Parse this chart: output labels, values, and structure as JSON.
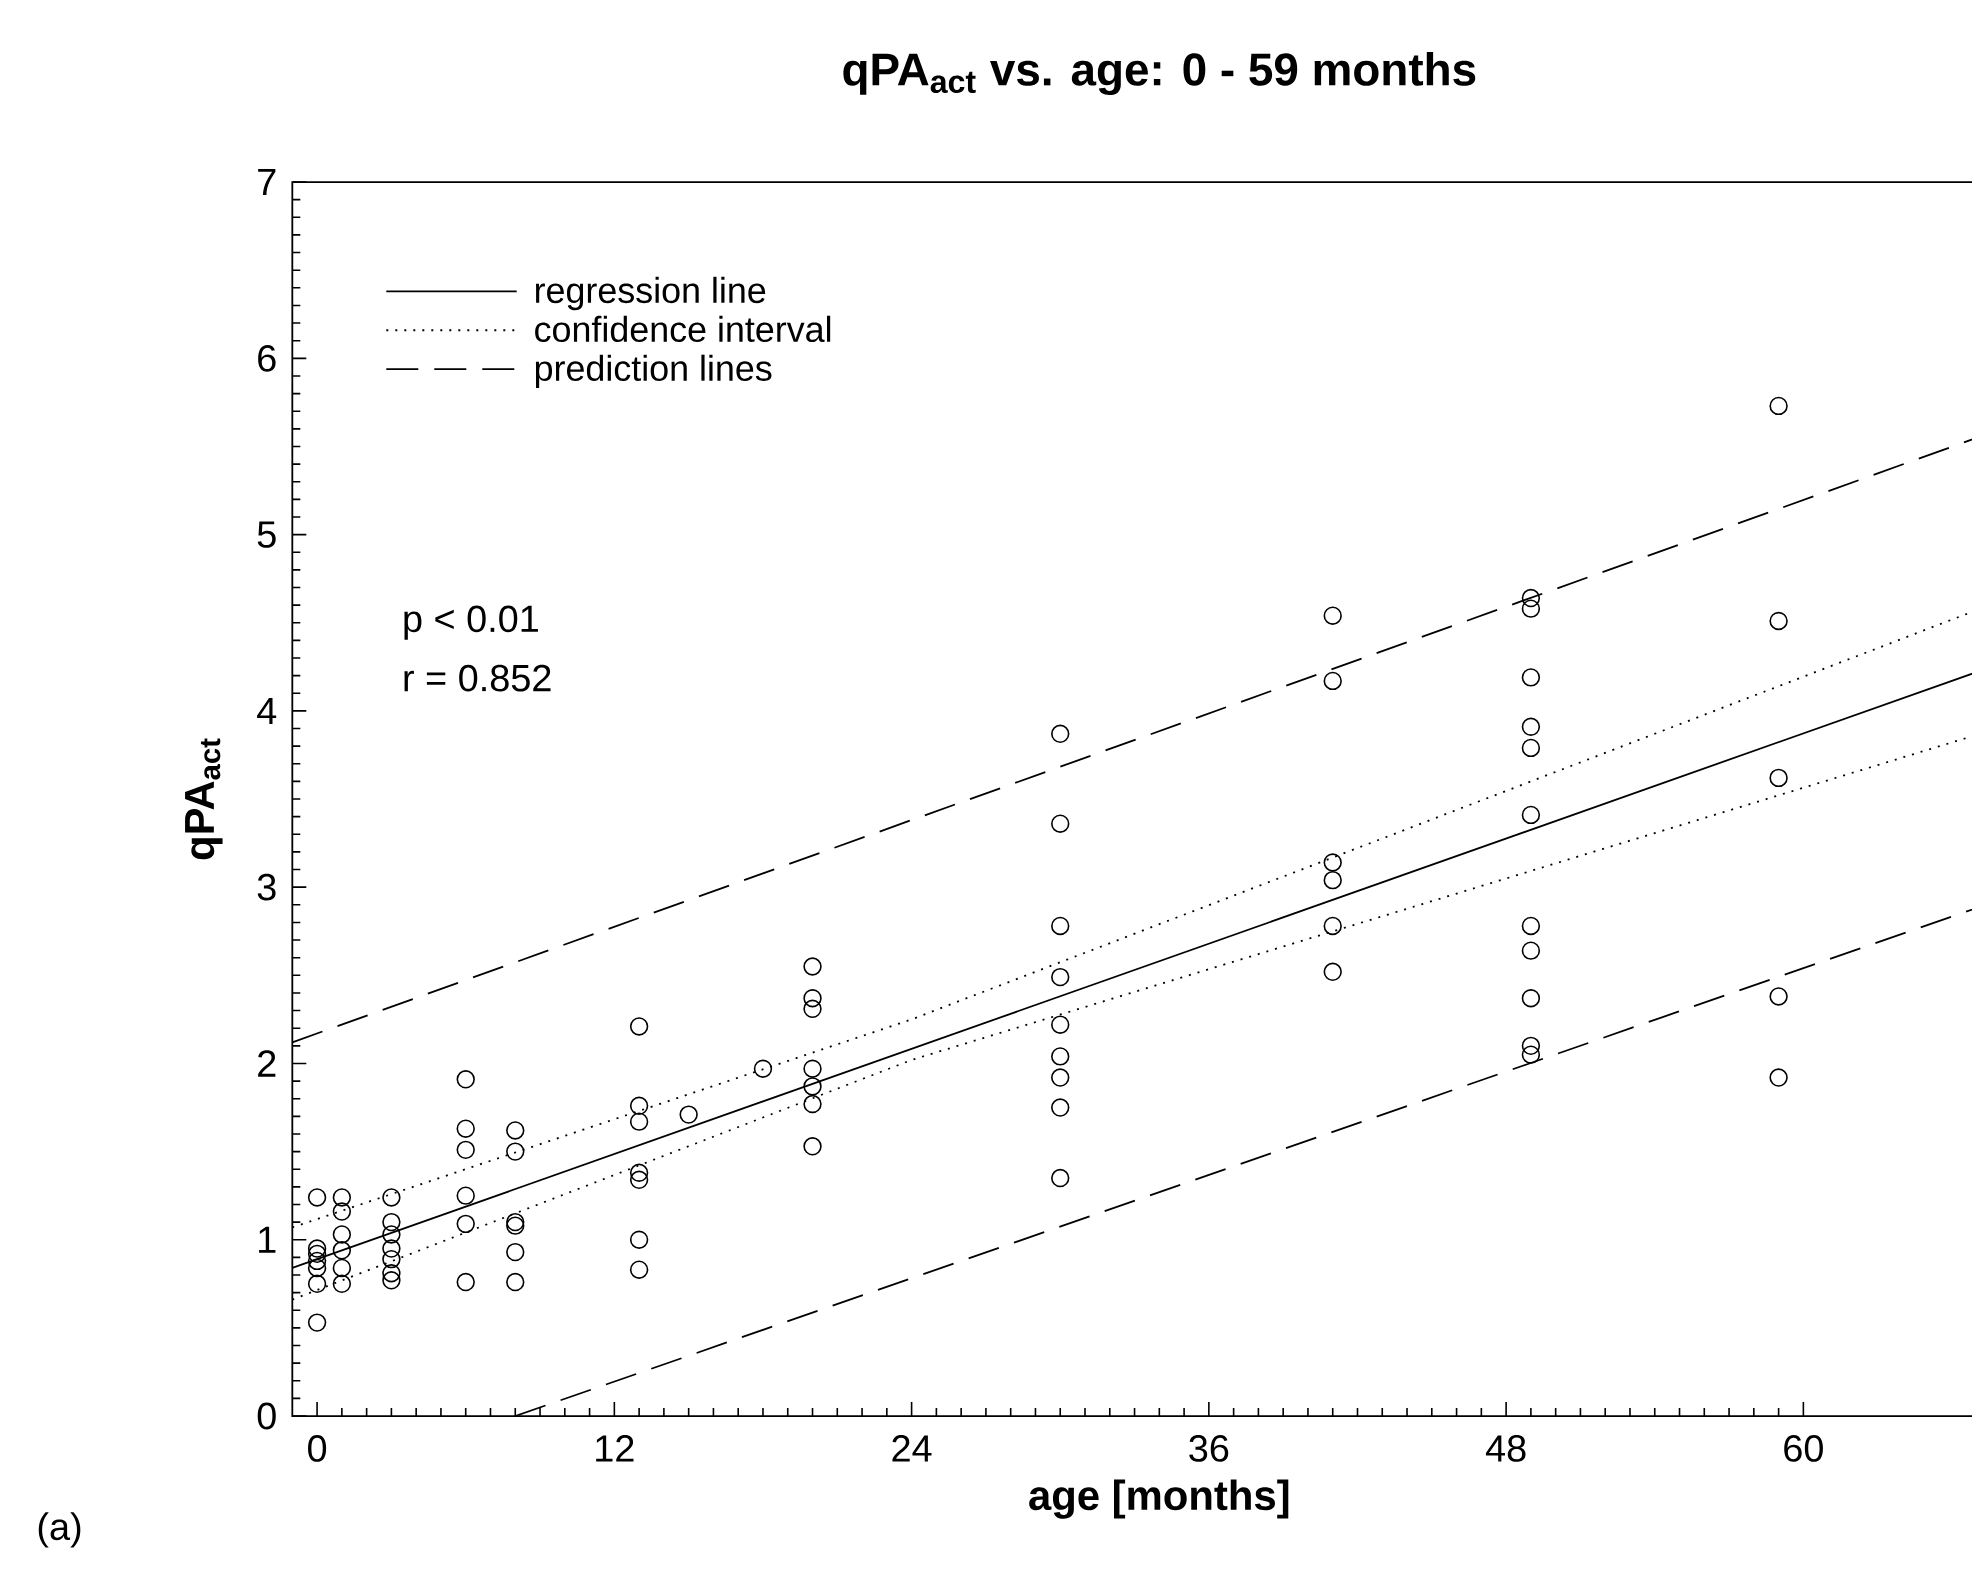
{
  "chart_data": {
    "type": "scatter",
    "title": "qPA$_{act}$ vs. age: 0 - 59 months",
    "xlabel": "age [months]",
    "ylabel": "qPA$_{act}$",
    "xlim": [
      -1,
      69
    ],
    "ylim": [
      0,
      7
    ],
    "xticks": [
      0,
      12,
      24,
      36,
      48,
      60
    ],
    "yticks": [
      0,
      1,
      2,
      3,
      4,
      5,
      6,
      7
    ],
    "grid": false,
    "legend": "top left",
    "annotations": [
      "p < 0.01",
      "r = 0.852",
      "(a)"
    ],
    "series": [
      {
        "color": "#000000",
        "marker": "circle",
        "x": [
          0,
          0,
          0,
          0,
          0,
          0,
          0,
          1,
          1,
          1,
          1,
          1,
          1,
          3,
          3,
          3,
          3,
          3,
          3,
          3,
          6,
          6,
          6,
          6,
          6,
          6,
          8,
          8,
          8,
          8,
          8,
          8,
          13,
          13,
          13,
          13,
          13,
          13,
          13,
          15,
          18,
          20,
          20,
          20,
          20,
          20,
          20,
          20,
          30,
          30,
          30,
          30,
          30,
          30,
          30,
          30,
          30,
          41,
          41,
          41,
          41,
          41,
          41,
          49,
          49,
          49,
          49,
          49,
          49,
          49,
          49,
          49,
          49,
          49,
          59,
          59,
          59,
          59,
          59
        ],
        "values": [
          1.24,
          0.95,
          0.92,
          0.88,
          0.84,
          0.75,
          0.53,
          1.24,
          1.16,
          1.03,
          0.94,
          0.84,
          0.75,
          1.24,
          1.1,
          1.03,
          0.95,
          0.89,
          0.81,
          0.77,
          1.91,
          1.63,
          1.51,
          1.25,
          1.09,
          0.76,
          1.62,
          1.5,
          1.1,
          1.08,
          0.93,
          0.76,
          2.21,
          1.76,
          1.67,
          1.38,
          1.34,
          1.0,
          0.83,
          1.71,
          1.97,
          2.55,
          2.37,
          2.31,
          1.97,
          1.87,
          1.77,
          1.53,
          3.87,
          3.36,
          2.78,
          2.49,
          2.22,
          2.04,
          1.92,
          1.75,
          1.35,
          4.54,
          4.17,
          3.14,
          3.04,
          2.78,
          2.52,
          4.64,
          4.58,
          4.19,
          3.91,
          3.79,
          3.41,
          2.78,
          2.64,
          2.37,
          2.1,
          2.05,
          5.73,
          4.51,
          3.62,
          2.38,
          1.92
        ]
      },
      {
        "type": "line",
        "name": "regression line",
        "color": "#000000",
        "line_style": "solid",
        "x": [
          -1,
          69
        ],
        "values": [
          0.84,
          4.32
        ]
      },
      {
        "type": "line",
        "name": "confidence interval",
        "color": "#000000",
        "line_style": "dotted",
        "x": [
          -1,
          24,
          69
        ],
        "values": [
          1.07,
          2.25,
          4.68
        ]
      },
      {
        "type": "line",
        "color": "#000000",
        "line_style": "dotted",
        "x": [
          -1,
          24,
          69
        ],
        "values": [
          0.66,
          2.02,
          3.95
        ]
      },
      {
        "type": "line",
        "name": "prediction lines",
        "color": "#000000",
        "line_style": "dashed",
        "x": [
          -1,
          69
        ],
        "values": [
          2.12,
          5.65
        ]
      },
      {
        "type": "line",
        "color": "#000000",
        "line_style": "dashed",
        "x": [
          8,
          69
        ],
        "values": [
          0,
          2.98
        ]
      }
    ]
  }
}
